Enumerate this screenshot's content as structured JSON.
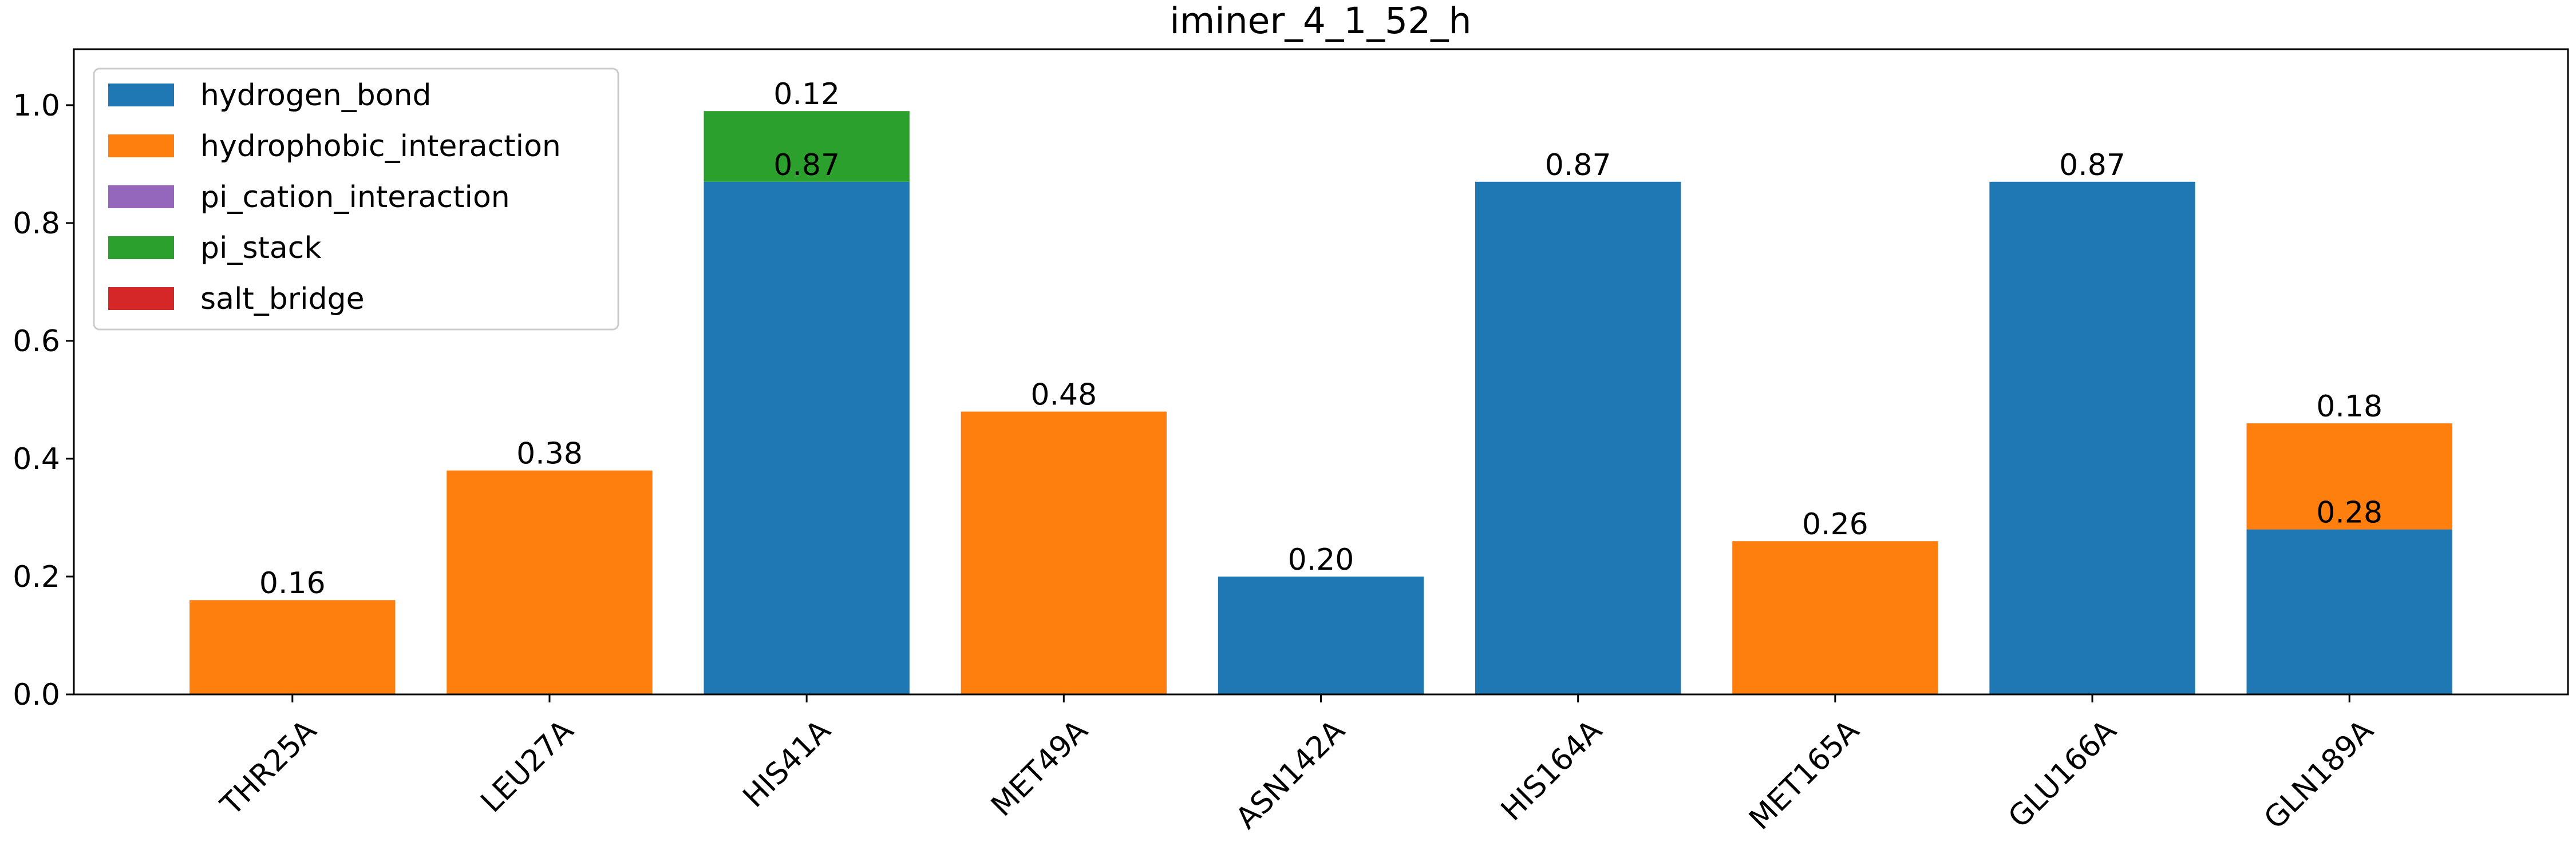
{
  "chart_data": {
    "type": "stacked_bar",
    "title": "iminer_4_1_52_h",
    "categories": [
      "THR25A",
      "LEU27A",
      "HIS41A",
      "MET49A",
      "ASN142A",
      "HIS164A",
      "MET165A",
      "GLU166A",
      "GLN189A"
    ],
    "series": [
      {
        "name": "hydrogen_bond",
        "color": "#1f77b4",
        "values": [
          0,
          0,
          0.87,
          0,
          0.2,
          0.87,
          0,
          0.87,
          0.28
        ],
        "value_labels": [
          null,
          null,
          "0.87",
          null,
          "0.20",
          "0.87",
          null,
          "0.87",
          "0.28"
        ]
      },
      {
        "name": "hydrophobic_interaction",
        "color": "#ff7f0e",
        "values": [
          0.16,
          0.38,
          0,
          0.48,
          0,
          0,
          0.26,
          0,
          0.18
        ],
        "value_labels": [
          "0.16",
          "0.38",
          null,
          "0.48",
          null,
          null,
          "0.26",
          null,
          "0.18"
        ]
      },
      {
        "name": "pi_cation_interaction",
        "color": "#9467bd",
        "values": [
          0,
          0,
          0,
          0,
          0,
          0,
          0,
          0,
          0
        ],
        "value_labels": [
          null,
          null,
          null,
          null,
          null,
          null,
          null,
          null,
          null
        ]
      },
      {
        "name": "pi_stack",
        "color": "#2ca02c",
        "values": [
          0,
          0,
          0.12,
          0,
          0,
          0,
          0,
          0,
          0
        ],
        "value_labels": [
          null,
          null,
          "0.12",
          null,
          null,
          null,
          null,
          null,
          null
        ]
      },
      {
        "name": "salt_bridge",
        "color": "#d62728",
        "values": [
          0,
          0,
          0,
          0,
          0,
          0,
          0,
          0,
          0
        ],
        "value_labels": [
          null,
          null,
          null,
          null,
          null,
          null,
          null,
          null,
          null
        ]
      }
    ],
    "ylim": [
      0,
      1.095
    ],
    "yticks": [
      {
        "value": 0,
        "label": "0.0"
      },
      0.2,
      0.4,
      0.6,
      0.8,
      {
        "value": 1,
        "label": "1.0"
      }
    ],
    "legend": "upper left",
    "grid": false
  }
}
